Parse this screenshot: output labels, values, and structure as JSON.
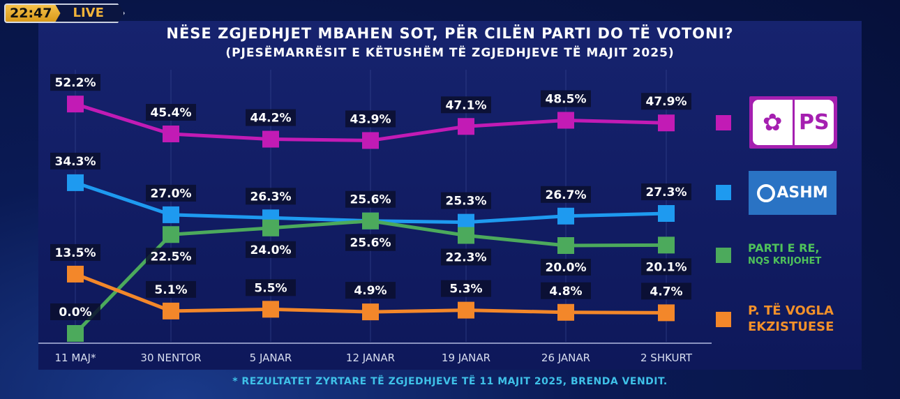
{
  "broadcast": {
    "time": "22:47",
    "live_label": "LIVE"
  },
  "title": "NËSE ZGJEDHJET MBAHEN SOT, PËR CILËN PARTI DO TË VOTONI?",
  "subtitle": "(PJESËMARRËSIT E KËTUSHËM TË ZGJEDHJEVE TË MAJIT 2025)",
  "footnote": "* REZULTATET ZYRTARE TË ZGJEDHJEVE TË 11 MAJIT 2025, BRENDA VENDIT.",
  "legend": {
    "ps_logo": "PS",
    "dashm_logo": "ASHM",
    "parti_e_re_line1": "PARTI E RE,",
    "parti_e_re_line2": "NQS KRIJOHET",
    "te_vogla_line1": "P. TË VOGLA",
    "te_vogla_line2": "EKZISTUESE"
  },
  "chart_data": {
    "type": "line",
    "title": "NËSE ZGJEDHJET MBAHEN SOT, PËR CILËN PARTI DO TË VOTONI?",
    "categories": [
      "11 MAJ*",
      "30 NENTOR",
      "5 JANAR",
      "12 JANAR",
      "19 JANAR",
      "26 JANAR",
      "2 SHKURT"
    ],
    "unit": "%",
    "grid": "vertical",
    "legend_position": "right",
    "series": [
      {
        "name": "PS",
        "color": "#c21bb5",
        "values": [
          52.2,
          45.4,
          44.2,
          43.9,
          47.1,
          48.5,
          47.9
        ]
      },
      {
        "name": "DASHM",
        "color": "#1e9af0",
        "values": [
          34.3,
          27.0,
          26.3,
          25.6,
          25.3,
          26.7,
          27.3
        ]
      },
      {
        "name": "PARTI E RE, NQS KRIJOHET",
        "color": "#4caa5c",
        "values": [
          0.0,
          22.5,
          24.0,
          25.6,
          22.3,
          20.0,
          20.1
        ]
      },
      {
        "name": "P. TË VOGLA EKZISTUESE",
        "color": "#f3872a",
        "values": [
          13.5,
          5.1,
          5.5,
          4.9,
          5.3,
          4.8,
          4.7
        ]
      }
    ]
  }
}
